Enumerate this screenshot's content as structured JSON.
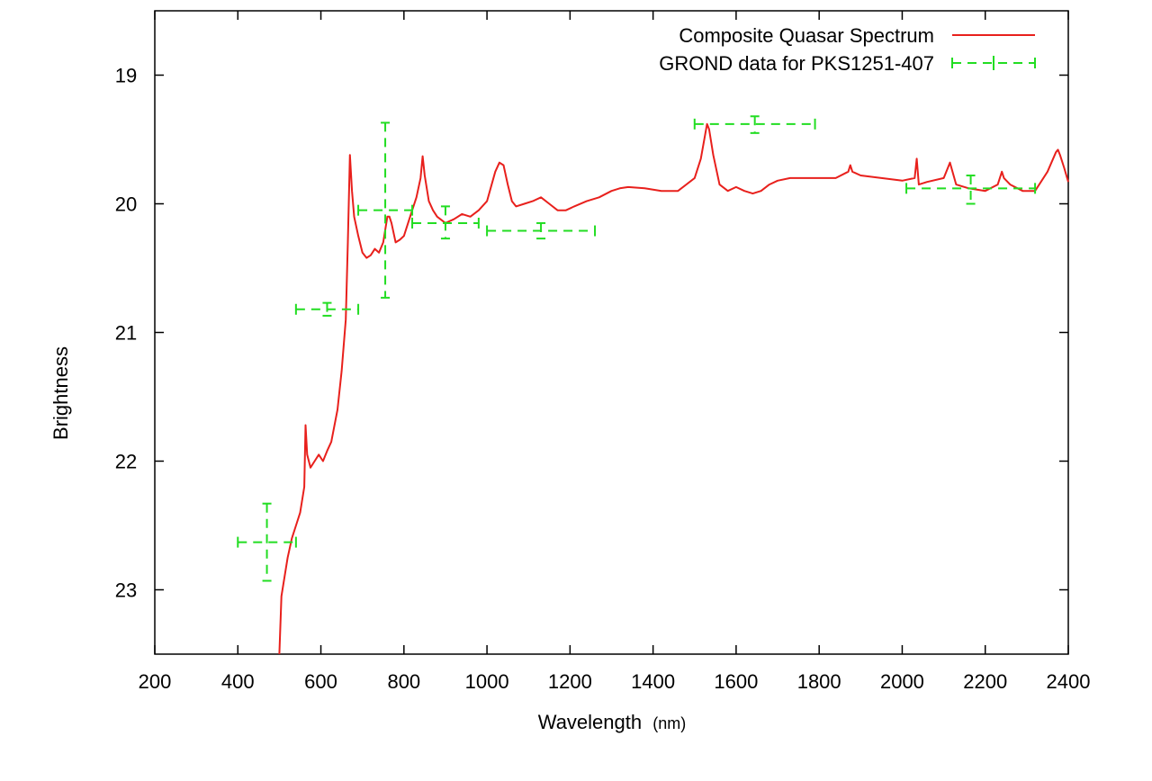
{
  "chart_data": {
    "type": "line",
    "xlabel": "Wavelength",
    "xlabel_unit": "(nm)",
    "ylabel": "Brightness",
    "xlim": [
      200,
      2400
    ],
    "ylim": [
      23.5,
      18.5
    ],
    "y_inverted": true,
    "grid": false,
    "legend_position": "top-right",
    "x_ticks": [
      200,
      400,
      600,
      800,
      1000,
      1200,
      1400,
      1600,
      1800,
      2000,
      2200,
      2400
    ],
    "y_ticks": [
      19,
      20,
      21,
      22,
      23
    ],
    "series": [
      {
        "name": "Composite Quasar Spectrum",
        "style": "solid",
        "color": "#e8201c",
        "x": [
          500,
          505,
          510,
          520,
          530,
          540,
          550,
          560,
          563,
          567,
          575,
          585,
          595,
          605,
          615,
          625,
          640,
          650,
          660,
          665,
          670,
          675,
          680,
          690,
          700,
          710,
          720,
          730,
          740,
          750,
          760,
          765,
          770,
          780,
          790,
          800,
          810,
          820,
          830,
          840,
          845,
          850,
          860,
          870,
          880,
          900,
          920,
          940,
          960,
          980,
          1000,
          1020,
          1030,
          1040,
          1050,
          1060,
          1070,
          1090,
          1110,
          1130,
          1150,
          1170,
          1190,
          1210,
          1240,
          1270,
          1300,
          1320,
          1340,
          1380,
          1420,
          1460,
          1500,
          1515,
          1525,
          1530,
          1535,
          1545,
          1560,
          1580,
          1600,
          1620,
          1640,
          1660,
          1680,
          1700,
          1730,
          1760,
          1800,
          1840,
          1870,
          1875,
          1880,
          1900,
          1950,
          2000,
          2030,
          2035,
          2040,
          2060,
          2100,
          2110,
          2115,
          2130,
          2160,
          2200,
          2230,
          2240,
          2245,
          2260,
          2290,
          2320,
          2350,
          2370,
          2375,
          2380,
          2390,
          2400
        ],
        "y": [
          23.5,
          23.05,
          22.95,
          22.75,
          22.6,
          22.5,
          22.4,
          22.2,
          21.72,
          21.95,
          22.05,
          22.0,
          21.95,
          22.0,
          21.92,
          21.85,
          21.6,
          21.3,
          20.9,
          20.3,
          19.62,
          19.9,
          20.1,
          20.25,
          20.38,
          20.42,
          20.4,
          20.35,
          20.38,
          20.3,
          20.1,
          20.1,
          20.15,
          20.3,
          20.28,
          20.25,
          20.15,
          20.05,
          19.95,
          19.8,
          19.63,
          19.78,
          19.98,
          20.05,
          20.1,
          20.15,
          20.12,
          20.08,
          20.1,
          20.05,
          19.98,
          19.75,
          19.68,
          19.7,
          19.85,
          19.98,
          20.02,
          20.0,
          19.98,
          19.95,
          20.0,
          20.05,
          20.05,
          20.02,
          19.98,
          19.95,
          19.9,
          19.88,
          19.87,
          19.88,
          19.9,
          19.9,
          19.8,
          19.65,
          19.47,
          19.38,
          19.42,
          19.62,
          19.85,
          19.9,
          19.87,
          19.9,
          19.92,
          19.9,
          19.85,
          19.82,
          19.8,
          19.8,
          19.8,
          19.8,
          19.75,
          19.7,
          19.75,
          19.78,
          19.8,
          19.82,
          19.8,
          19.65,
          19.85,
          19.83,
          19.8,
          19.72,
          19.68,
          19.85,
          19.88,
          19.9,
          19.85,
          19.75,
          19.8,
          19.85,
          19.9,
          19.9,
          19.75,
          19.6,
          19.58,
          19.62,
          19.72,
          19.83
        ]
      },
      {
        "name": "GROND data for PKS1251-407",
        "style": "dashed-errorbars",
        "color": "#22dd22",
        "points": [
          {
            "x": 470,
            "y": 22.63,
            "xerr": [
              400,
              540
            ],
            "yerr": [
              22.33,
              22.93
            ]
          },
          {
            "x": 615,
            "y": 20.82,
            "xerr": [
              540,
              690
            ],
            "yerr": [
              20.77,
              20.87
            ]
          },
          {
            "x": 755,
            "y": 20.05,
            "xerr": [
              690,
              820
            ],
            "yerr": [
              19.37,
              20.73
            ]
          },
          {
            "x": 900,
            "y": 20.15,
            "xerr": [
              820,
              980
            ],
            "yerr": [
              20.02,
              20.27
            ]
          },
          {
            "x": 1130,
            "y": 20.21,
            "xerr": [
              1000,
              1260
            ],
            "yerr": [
              20.15,
              20.27
            ]
          },
          {
            "x": 1645,
            "y": 19.38,
            "xerr": [
              1500,
              1790
            ],
            "yerr": [
              19.32,
              19.45
            ]
          },
          {
            "x": 2165,
            "y": 19.88,
            "xerr": [
              2010,
              2320
            ],
            "yerr": [
              19.78,
              20.0
            ]
          }
        ]
      }
    ]
  }
}
